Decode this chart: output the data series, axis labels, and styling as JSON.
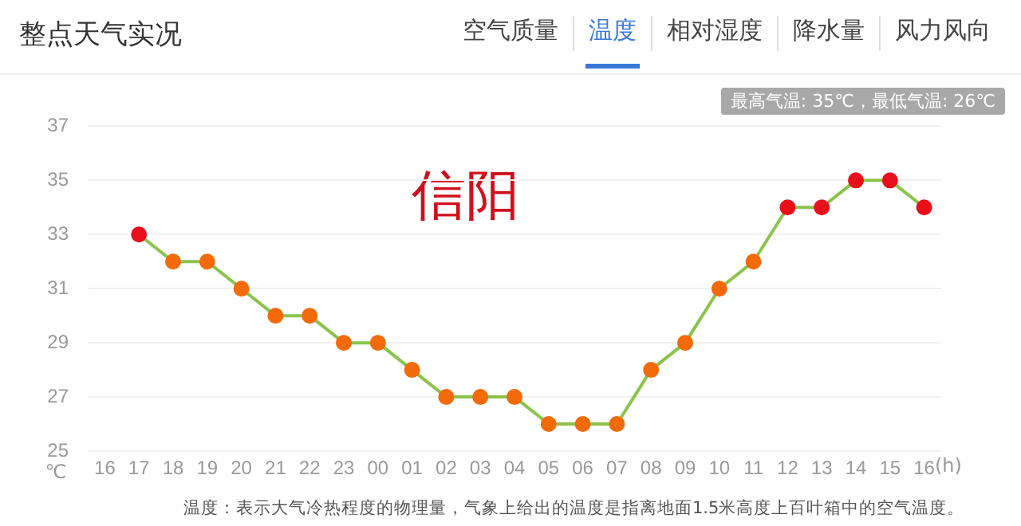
{
  "chart_data": {
    "type": "line",
    "title": "整点天气实况",
    "categories": [
      "16",
      "17",
      "18",
      "19",
      "20",
      "21",
      "22",
      "23",
      "00",
      "01",
      "02",
      "03",
      "04",
      "05",
      "06",
      "07",
      "08",
      "09",
      "10",
      "11",
      "12",
      "13",
      "14",
      "15",
      "16"
    ],
    "series": [
      {
        "color": "#8bc34a",
        "values": [
          null,
          33,
          32,
          32,
          31,
          30,
          30,
          29,
          29,
          28,
          27,
          27,
          27,
          26,
          26,
          26,
          28,
          29,
          31,
          32,
          34,
          34,
          35,
          35,
          34
        ],
        "colors": [
          "#f26a0a",
          "#e8101a",
          "#f26a0a",
          "#f26a0a",
          "#f26a0a",
          "#f26a0a",
          "#f26a0a",
          "#f26a0a",
          "#f26a0a",
          "#f26a0a",
          "#f26a0a",
          "#f26a0a",
          "#f26a0a",
          "#f26a0a",
          "#f26a0a",
          "#f26a0a",
          "#f26a0a",
          "#f26a0a",
          "#f26a0a",
          "#f26a0a",
          "#e8101a",
          "#e8101a",
          "#e8101a",
          "#e8101a",
          "#e8101a"
        ]
      }
    ],
    "ylim": [
      25,
      37
    ],
    "yticks": [
      25,
      27,
      29,
      31,
      33,
      35,
      37
    ],
    "xlabel": "(h)",
    "ylabel": "℃",
    "grid": "y",
    "legend": false,
    "marker": "circle",
    "annotations": [
      "空气质量",
      "温度",
      "相对湿度",
      "降水量",
      "风力风向",
      "最高气温: 35℃，最低气温: 26℃",
      "信阳",
      "温度：表示大气冷热程度的物理量，气象上给出的温度是指离地面1.5米高度上百叶箱中的空气温度。"
    ]
  }
}
